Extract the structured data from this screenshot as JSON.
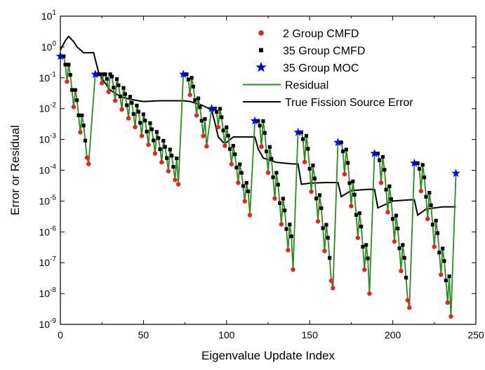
{
  "chart_data": {
    "type": "line",
    "title": "",
    "xlabel": "Eigenvalue Update Index",
    "ylabel": "Error or Residual",
    "xlim": [
      0,
      250
    ],
    "ylim": [
      1e-09,
      10
    ],
    "y_scale": "log",
    "grid": false,
    "legend_position": "top-right",
    "x_ticks": [
      0,
      50,
      100,
      150,
      200,
      250
    ],
    "x_tick_labels": [
      "0",
      "50",
      "100",
      "150",
      "200",
      "250"
    ],
    "y_ticks": [
      {
        "value": 10.0,
        "base": "10",
        "exp": "1"
      },
      {
        "value": 1.0,
        "base": "10",
        "exp": "0"
      },
      {
        "value": 0.1,
        "base": "10",
        "exp": "-1"
      },
      {
        "value": 0.01,
        "base": "10",
        "exp": "-2"
      },
      {
        "value": 0.001,
        "base": "10",
        "exp": "-3"
      },
      {
        "value": 0.0001,
        "base": "10",
        "exp": "-4"
      },
      {
        "value": 1e-05,
        "base": "10",
        "exp": "-5"
      },
      {
        "value": 1e-06,
        "base": "10",
        "exp": "-6"
      },
      {
        "value": 1e-07,
        "base": "10",
        "exp": "-7"
      },
      {
        "value": 1e-08,
        "base": "10",
        "exp": "-8"
      },
      {
        "value": 1e-09,
        "base": "10",
        "exp": "-9"
      }
    ],
    "legend": [
      {
        "name": "2 Group CMFD",
        "color": "#e8231e",
        "marker": "circle"
      },
      {
        "name": "35 Group CMFD",
        "color": "#000000",
        "marker": "square"
      },
      {
        "name": "35 Group MOC",
        "color": "#0000ff",
        "marker": "star"
      },
      {
        "name": "Residual",
        "color": "#2e8b1e",
        "marker": "line"
      },
      {
        "name": "True Fission Source Error",
        "color": "#000000",
        "marker": "line"
      }
    ],
    "series": [
      {
        "name": "35 Group MOC",
        "color": "#0000ff",
        "marker": "star",
        "x": [
          0,
          21,
          74,
          91,
          117,
          143,
          167,
          189,
          213,
          238
        ],
        "y": [
          0.5,
          0.13,
          0.13,
          0.01,
          0.004,
          0.0017,
          0.0008,
          0.00035,
          0.00017,
          8e-05
        ]
      },
      {
        "name": "Residual (per-cycle envelope)",
        "color": "#2e8b1e",
        "cycles": [
          {
            "moc_index": 0,
            "moc_value": 0.5,
            "end_index": 17,
            "min_value": 0.00016
          },
          {
            "moc_index": 21,
            "moc_value": 0.13,
            "end_index": 71,
            "min_value": 3.5e-05
          },
          {
            "moc_index": 74,
            "moc_value": 0.13,
            "end_index": 88,
            "min_value": 0.0006
          },
          {
            "moc_index": 91,
            "moc_value": 0.01,
            "end_index": 114,
            "min_value": 3.5e-06
          },
          {
            "moc_index": 117,
            "moc_value": 0.004,
            "end_index": 140,
            "min_value": 6e-08
          },
          {
            "moc_index": 143,
            "moc_value": 0.0017,
            "end_index": 164,
            "min_value": 1.5e-08
          },
          {
            "moc_index": 167,
            "moc_value": 0.0008,
            "end_index": 186,
            "min_value": 1e-08
          },
          {
            "moc_index": 189,
            "moc_value": 0.00035,
            "end_index": 210,
            "min_value": 3.5e-09
          },
          {
            "moc_index": 213,
            "moc_value": 0.00017,
            "end_index": 235,
            "min_value": 1.8e-09
          },
          {
            "moc_index": 238,
            "moc_value": 8e-05,
            "end_index": 238,
            "min_value": 8e-05
          }
        ]
      },
      {
        "name": "True Fission Source Error",
        "color": "#000000",
        "x": [
          0,
          3,
          5,
          8,
          10,
          14,
          20,
          21,
          23,
          26,
          30,
          36,
          42,
          50,
          60,
          70,
          74,
          78,
          85,
          88,
          91,
          93,
          95,
          98,
          100,
          104,
          110,
          117,
          119,
          122,
          130,
          140,
          143,
          145,
          150,
          160,
          167,
          169,
          175,
          185,
          189,
          191,
          200,
          210,
          213,
          215,
          220,
          230,
          238
        ],
        "y": [
          0.8,
          1.6,
          2.2,
          1.5,
          1.0,
          0.65,
          0.65,
          0.4,
          0.15,
          0.08,
          0.04,
          0.025,
          0.02,
          0.017,
          0.018,
          0.018,
          0.018,
          0.017,
          0.013,
          0.011,
          0.009,
          0.0035,
          0.0012,
          0.0008,
          0.0008,
          0.0012,
          0.0012,
          0.0012,
          0.0005,
          0.00025,
          0.00018,
          0.00016,
          0.00016,
          3.5e-05,
          3.8e-05,
          4e-05,
          4e-05,
          1.4e-05,
          2.2e-05,
          2.4e-05,
          2.4e-05,
          6e-06,
          1e-05,
          1.1e-05,
          1.1e-05,
          3.5e-06,
          5.5e-06,
          6.5e-06,
          6.5e-06
        ]
      }
    ]
  }
}
